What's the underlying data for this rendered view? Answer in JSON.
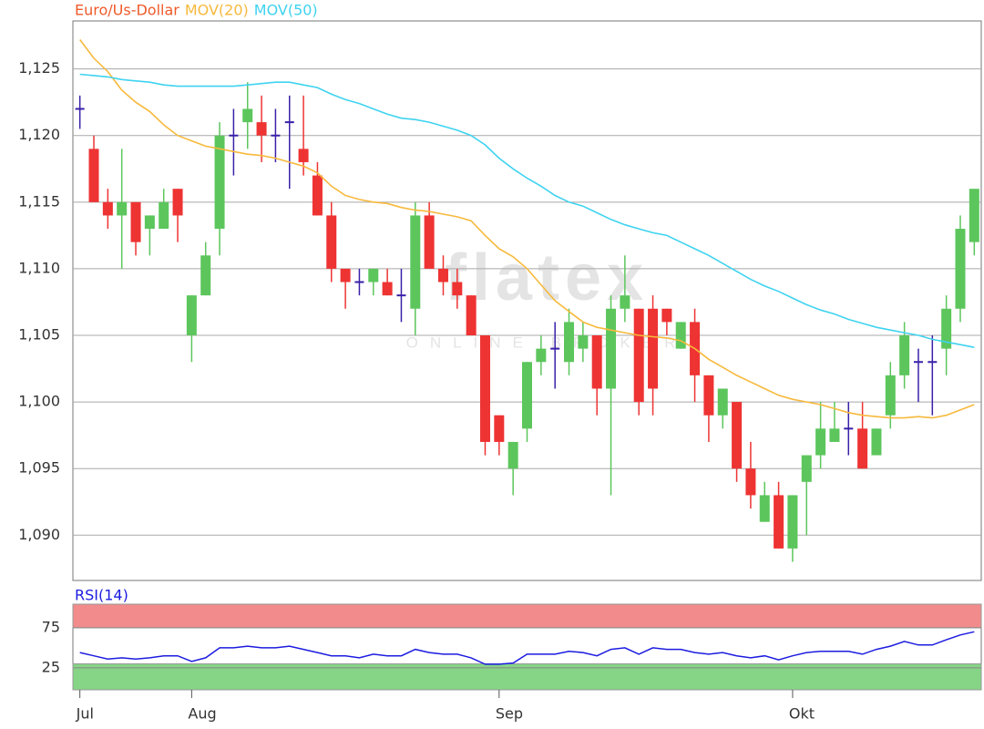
{
  "chart_data": [
    {
      "type": "candlestick",
      "name": "Euro/Us-Dollar",
      "name_color": "#ee5a2a",
      "categories": [
        "Jul",
        null,
        null,
        null,
        null,
        null,
        null,
        null,
        "Aug",
        null,
        null,
        null,
        null,
        null,
        null,
        null,
        null,
        null,
        null,
        null,
        null,
        null,
        null,
        null,
        null,
        null,
        null,
        null,
        null,
        null,
        "Sep",
        null,
        null,
        null,
        null,
        null,
        null,
        null,
        null,
        null,
        null,
        null,
        null,
        null,
        null,
        null,
        null,
        null,
        null,
        null,
        null,
        "Okt",
        null,
        null,
        null,
        null,
        null,
        null,
        null,
        null,
        null,
        null,
        null,
        null,
        null
      ],
      "open": [
        1.122,
        1.119,
        1.115,
        1.114,
        1.115,
        1.113,
        1.113,
        1.116,
        1.105,
        1.108,
        1.113,
        1.12,
        1.121,
        1.121,
        1.12,
        1.121,
        1.119,
        1.117,
        1.114,
        1.11,
        1.109,
        1.109,
        1.109,
        1.108,
        1.107,
        1.114,
        1.11,
        1.109,
        1.108,
        1.105,
        1.099,
        1.095,
        1.098,
        1.103,
        1.104,
        1.103,
        1.104,
        1.105,
        1.101,
        1.107,
        1.107,
        1.107,
        1.107,
        1.104,
        1.106,
        1.102,
        1.099,
        1.1,
        1.095,
        1.091,
        1.093,
        1.089,
        1.094,
        1.096,
        1.097,
        1.098,
        1.098,
        1.096,
        1.099,
        1.102,
        1.103,
        1.103,
        1.104,
        1.107,
        1.112
      ],
      "high": [
        1.123,
        1.12,
        1.116,
        1.119,
        1.115,
        1.114,
        1.116,
        1.116,
        1.108,
        1.112,
        1.121,
        1.122,
        1.124,
        1.123,
        1.122,
        1.123,
        1.123,
        1.118,
        1.115,
        1.11,
        1.11,
        1.11,
        1.11,
        1.11,
        1.115,
        1.115,
        1.111,
        1.11,
        1.108,
        1.105,
        1.099,
        1.097,
        1.103,
        1.105,
        1.106,
        1.107,
        1.106,
        1.105,
        1.108,
        1.111,
        1.107,
        1.108,
        1.107,
        1.106,
        1.107,
        1.102,
        1.101,
        1.1,
        1.097,
        1.094,
        1.094,
        1.093,
        1.096,
        1.1,
        1.1,
        1.1,
        1.1,
        1.098,
        1.103,
        1.106,
        1.104,
        1.105,
        1.108,
        1.114,
        1.116
      ],
      "low": [
        1.1205,
        1.115,
        1.113,
        1.11,
        1.111,
        1.111,
        1.113,
        1.112,
        1.103,
        1.108,
        1.111,
        1.117,
        1.119,
        1.118,
        1.118,
        1.116,
        1.117,
        1.114,
        1.109,
        1.107,
        1.108,
        1.108,
        1.108,
        1.106,
        1.105,
        1.11,
        1.108,
        1.107,
        1.105,
        1.096,
        1.096,
        1.093,
        1.097,
        1.102,
        1.101,
        1.102,
        1.103,
        1.099,
        1.093,
        1.106,
        1.099,
        1.099,
        1.105,
        1.104,
        1.1,
        1.097,
        1.098,
        1.094,
        1.092,
        1.091,
        1.089,
        1.088,
        1.09,
        1.095,
        1.097,
        1.096,
        1.095,
        1.096,
        1.098,
        1.101,
        1.1,
        1.099,
        1.102,
        1.106,
        1.111
      ],
      "close": [
        1.122,
        1.115,
        1.114,
        1.115,
        1.112,
        1.114,
        1.115,
        1.114,
        1.108,
        1.111,
        1.12,
        1.12,
        1.122,
        1.12,
        1.12,
        1.121,
        1.118,
        1.114,
        1.11,
        1.109,
        1.109,
        1.11,
        1.108,
        1.108,
        1.114,
        1.11,
        1.109,
        1.108,
        1.105,
        1.097,
        1.097,
        1.097,
        1.103,
        1.104,
        1.104,
        1.106,
        1.105,
        1.101,
        1.107,
        1.108,
        1.1,
        1.101,
        1.106,
        1.106,
        1.102,
        1.099,
        1.101,
        1.095,
        1.093,
        1.093,
        1.089,
        1.093,
        1.096,
        1.098,
        1.098,
        1.098,
        1.095,
        1.098,
        1.102,
        1.105,
        1.103,
        1.103,
        1.107,
        1.113,
        1.116
      ],
      "up_color": "#5cc65c",
      "down_color": "#ee3333",
      "doji_color": "#3a20a8",
      "series": [
        {
          "name": "MOV(20)",
          "color": "#f7b93c",
          "values": [
            1.1272,
            1.1258,
            1.1248,
            1.1234,
            1.1225,
            1.1218,
            1.1208,
            1.12,
            1.1196,
            1.1192,
            1.119,
            1.1188,
            1.1186,
            1.1185,
            1.1183,
            1.118,
            1.1177,
            1.1172,
            1.1162,
            1.1155,
            1.1152,
            1.115,
            1.1149,
            1.1146,
            1.1144,
            1.1143,
            1.1141,
            1.1139,
            1.1136,
            1.1125,
            1.1115,
            1.1109,
            1.11,
            1.1088,
            1.1076,
            1.1068,
            1.106,
            1.1056,
            1.1054,
            1.1052,
            1.105,
            1.1049,
            1.1048,
            1.1046,
            1.104,
            1.1032,
            1.1026,
            1.102,
            1.1015,
            1.101,
            1.1005,
            1.1002,
            1.1,
            1.0998,
            1.0995,
            1.0992,
            1.099,
            1.0989,
            1.0988,
            1.0988,
            1.0989,
            1.0988,
            1.099,
            1.0994,
            1.0998
          ]
        },
        {
          "name": "MOV(50)",
          "color": "#3fd3f0",
          "values": [
            1.1246,
            1.1245,
            1.1244,
            1.1242,
            1.1241,
            1.124,
            1.1238,
            1.1237,
            1.1237,
            1.1237,
            1.1237,
            1.1237,
            1.1238,
            1.1239,
            1.124,
            1.124,
            1.1238,
            1.1236,
            1.1231,
            1.1227,
            1.1224,
            1.122,
            1.1216,
            1.1213,
            1.1212,
            1.121,
            1.1207,
            1.1204,
            1.12,
            1.1193,
            1.1183,
            1.1175,
            1.1168,
            1.1162,
            1.1155,
            1.115,
            1.1147,
            1.1142,
            1.1137,
            1.1133,
            1.113,
            1.1127,
            1.1125,
            1.112,
            1.1115,
            1.111,
            1.1104,
            1.1098,
            1.1092,
            1.1087,
            1.1083,
            1.1078,
            1.1073,
            1.1069,
            1.1066,
            1.1062,
            1.1059,
            1.1056,
            1.1054,
            1.1052,
            1.105,
            1.1047,
            1.1045,
            1.1043,
            1.1041
          ]
        }
      ],
      "ylim": [
        1.0866,
        1.1286
      ],
      "yticks": [
        {
          "value": 1.09,
          "label": "1,090"
        },
        {
          "value": 1.095,
          "label": "1,095"
        },
        {
          "value": 1.1,
          "label": "1,100"
        },
        {
          "value": 1.105,
          "label": "1,105"
        },
        {
          "value": 1.11,
          "label": "1,110"
        },
        {
          "value": 1.115,
          "label": "1,115"
        },
        {
          "value": 1.12,
          "label": "1,120"
        },
        {
          "value": 1.125,
          "label": "1,125"
        }
      ],
      "grid": true,
      "watermark": "flatex",
      "watermark_sub": "ONLINE BROKER"
    },
    {
      "type": "line",
      "series": [
        {
          "name": "RSI(14)",
          "color": "#1c1ce0",
          "values": [
            44,
            40,
            36,
            37.5,
            36,
            37.5,
            40,
            40,
            33,
            37.5,
            50,
            50,
            52,
            50,
            50,
            52,
            48,
            44,
            40,
            40,
            37.5,
            42,
            40,
            40,
            48,
            44,
            42,
            42,
            37.5,
            29.5,
            29.5,
            31,
            42,
            42,
            42,
            45.5,
            44,
            40,
            48,
            50,
            42,
            50,
            48,
            48,
            44,
            42,
            44,
            40,
            37.5,
            40,
            35,
            40,
            44,
            45.5,
            45.5,
            45.5,
            42,
            48,
            52,
            58,
            53.5,
            53.5,
            60,
            66,
            70
          ]
        }
      ],
      "ylim": [
        -2.5,
        104.5
      ],
      "yticks": [
        25,
        75
      ],
      "grid": true,
      "bands": [
        {
          "from": 75,
          "to": 104.5,
          "color": "#f28b8b"
        },
        {
          "from": -2.5,
          "to": 30,
          "color": "#86d486"
        }
      ]
    }
  ]
}
